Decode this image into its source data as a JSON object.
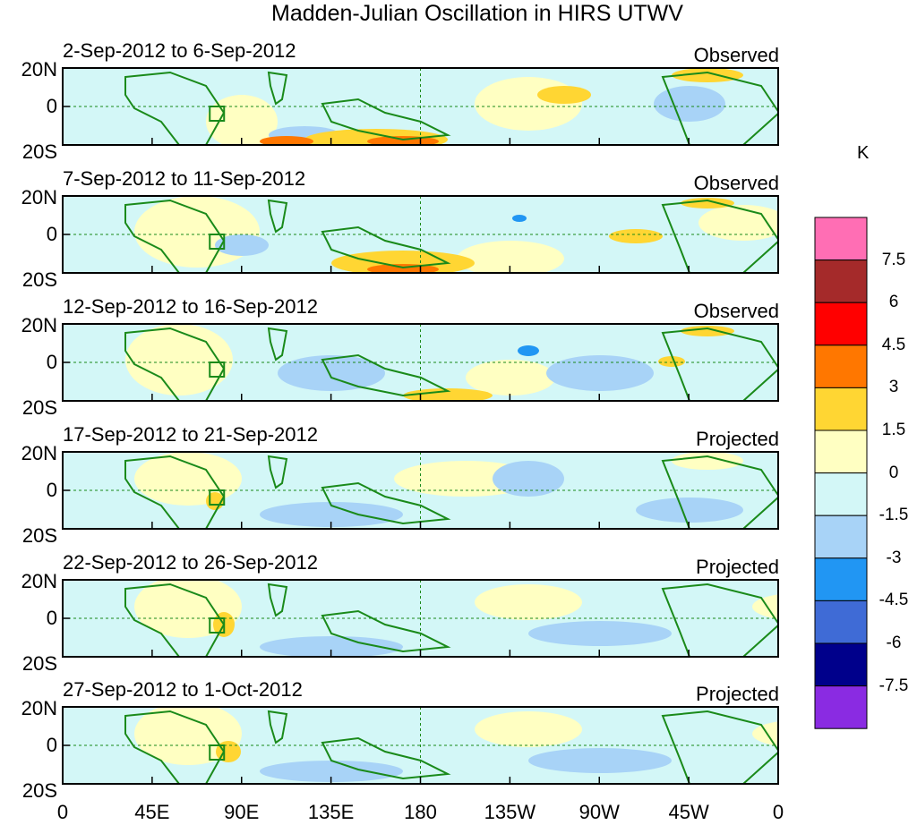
{
  "chart_data": {
    "type": "heatmap",
    "title": "Madden-Julian Oscillation in HIRS UTWV",
    "panels": [
      {
        "dates": "2-Sep-2012 to 6-Sep-2012",
        "status": "Observed"
      },
      {
        "dates": "7-Sep-2012 to 11-Sep-2012",
        "status": "Observed"
      },
      {
        "dates": "12-Sep-2012 to 16-Sep-2012",
        "status": "Observed"
      },
      {
        "dates": "17-Sep-2012 to 21-Sep-2012",
        "status": "Projected"
      },
      {
        "dates": "22-Sep-2012 to 26-Sep-2012",
        "status": "Projected"
      },
      {
        "dates": "27-Sep-2012 to 1-Oct-2012",
        "status": "Projected"
      }
    ],
    "y_ticks": [
      "20N",
      "0",
      "20S"
    ],
    "x_ticks": [
      "0",
      "45E",
      "90E",
      "135E",
      "180",
      "135W",
      "90W",
      "45W",
      "0"
    ],
    "xlim": [
      0,
      360
    ],
    "ylim": [
      -20,
      20
    ],
    "colorbar": {
      "unit": "K",
      "levels": [
        "7.5",
        "6",
        "4.5",
        "3",
        "1.5",
        "0",
        "-1.5",
        "-3",
        "-4.5",
        "-6",
        "-7.5"
      ],
      "colors": [
        "#ff6eb4",
        "#a52a2a",
        "#ff0000",
        "#ff7700",
        "#ffd633",
        "#ffffc2",
        "#d3f7f7",
        "#a8d3f7",
        "#2196f3",
        "#3f6bd6",
        "#00008b",
        "#8a2be2"
      ]
    }
  }
}
